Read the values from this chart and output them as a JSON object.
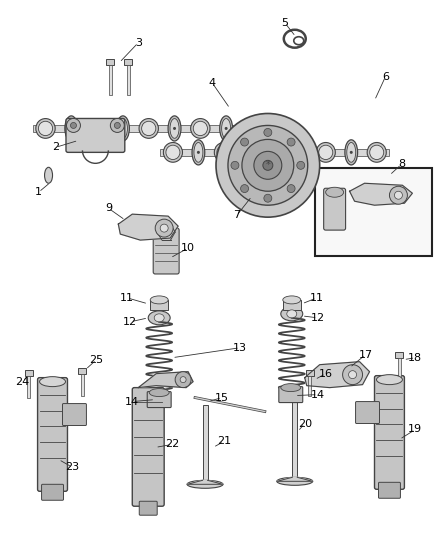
{
  "bg_color": "#ffffff",
  "fig_width": 4.38,
  "fig_height": 5.33,
  "dpi": 100,
  "line_color": "#444444",
  "dark_color": "#222222",
  "light_gray": "#cccccc",
  "mid_gray": "#999999",
  "dark_gray": "#666666"
}
